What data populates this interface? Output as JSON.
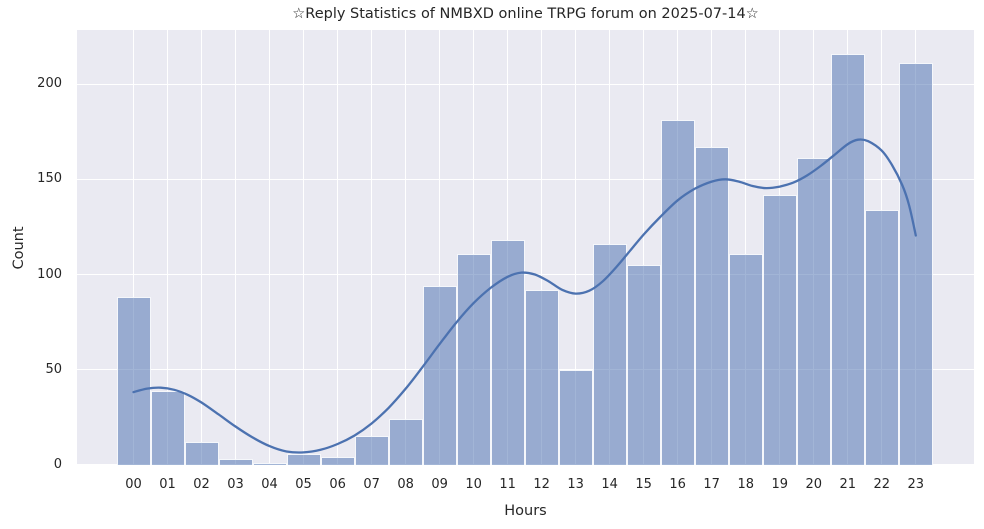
{
  "chart_data": {
    "type": "histogram+kde",
    "title": "☆Reply Statistics of NMBXD online TRPG forum on 2025-07-14☆",
    "xlabel": "Hours",
    "ylabel": "Count",
    "categories": [
      "00",
      "01",
      "02",
      "03",
      "04",
      "05",
      "06",
      "07",
      "08",
      "09",
      "10",
      "11",
      "12",
      "13",
      "14",
      "15",
      "16",
      "17",
      "18",
      "19",
      "20",
      "21",
      "22",
      "23"
    ],
    "values": [
      88,
      39,
      12,
      3,
      1,
      6,
      4,
      15,
      24,
      94,
      111,
      118,
      92,
      50,
      116,
      105,
      181,
      167,
      111,
      142,
      161,
      216,
      134,
      211
    ],
    "yticks": [
      0,
      50,
      100,
      150,
      200
    ],
    "ylim": [
      0,
      228.4
    ],
    "xlim_hours": [
      -1.66,
      24.71
    ],
    "grid": true,
    "legend_position": "none",
    "kde_points": [
      [
        0.0,
        38.3
      ],
      [
        0.4,
        40.1
      ],
      [
        0.8,
        40.6
      ],
      [
        1.2,
        39.5
      ],
      [
        1.6,
        36.8
      ],
      [
        2.0,
        32.8
      ],
      [
        2.5,
        26.6
      ],
      [
        3.0,
        20.2
      ],
      [
        3.5,
        14.5
      ],
      [
        4.0,
        9.9
      ],
      [
        4.5,
        7.1
      ],
      [
        5.0,
        6.6
      ],
      [
        5.5,
        8.0
      ],
      [
        6.0,
        11.0
      ],
      [
        6.5,
        15.5
      ],
      [
        7.0,
        21.8
      ],
      [
        7.5,
        30.0
      ],
      [
        8.0,
        40.0
      ],
      [
        8.5,
        51.5
      ],
      [
        9.0,
        63.5
      ],
      [
        9.5,
        75.0
      ],
      [
        10.0,
        85.0
      ],
      [
        10.5,
        93.0
      ],
      [
        11.0,
        98.8
      ],
      [
        11.4,
        101.0
      ],
      [
        11.8,
        100.0
      ],
      [
        12.2,
        96.5
      ],
      [
        12.6,
        92.0
      ],
      [
        13.0,
        90.0
      ],
      [
        13.4,
        91.5
      ],
      [
        13.8,
        96.5
      ],
      [
        14.2,
        104.0
      ],
      [
        14.6,
        112.5
      ],
      [
        15.0,
        121.0
      ],
      [
        15.5,
        130.5
      ],
      [
        16.0,
        139.0
      ],
      [
        16.5,
        145.0
      ],
      [
        17.0,
        148.8
      ],
      [
        17.4,
        150.0
      ],
      [
        17.8,
        148.8
      ],
      [
        18.2,
        146.5
      ],
      [
        18.6,
        145.4
      ],
      [
        19.0,
        146.2
      ],
      [
        19.4,
        148.3
      ],
      [
        19.8,
        152.0
      ],
      [
        20.2,
        157.0
      ],
      [
        20.6,
        162.7
      ],
      [
        21.0,
        168.5
      ],
      [
        21.3,
        170.8
      ],
      [
        21.6,
        170.0
      ],
      [
        22.0,
        165.0
      ],
      [
        22.3,
        157.5
      ],
      [
        22.6,
        147.0
      ],
      [
        22.8,
        136.5
      ],
      [
        23.0,
        120.5
      ]
    ],
    "colors": {
      "figure_background": "#ffffff",
      "plot_background": "#eaeaf2",
      "grid": "#ffffff",
      "bar_fill": "rgba(76,114,176,0.52)",
      "bar_edge": "rgba(255,255,255,0.9)",
      "kde_line": "#4c72b0",
      "text": "#262626"
    }
  }
}
